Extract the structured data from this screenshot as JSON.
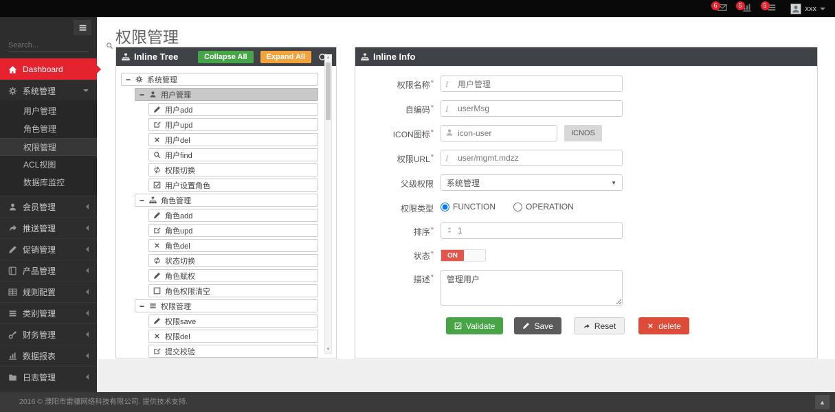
{
  "topbar": {
    "notifications": [
      {
        "key": "messages",
        "icon": "envelope-icon",
        "count": "6"
      },
      {
        "key": "reports",
        "icon": "chart-icon",
        "count": "5"
      },
      {
        "key": "tasks",
        "icon": "tasks-icon",
        "count": "5"
      }
    ],
    "user": {
      "name": "xxx",
      "avatar_icon": "avatar"
    }
  },
  "sidebar": {
    "search_placeholder": "Search...",
    "items": [
      {
        "key": "dashboard",
        "icon": "home-icon",
        "label": "Dashboard",
        "active": true
      },
      {
        "key": "system",
        "icon": "cogs-icon",
        "label": "系统管理",
        "expanded": true,
        "children": [
          {
            "key": "user",
            "label": "用户管理"
          },
          {
            "key": "role",
            "label": "角色管理"
          },
          {
            "key": "permission",
            "label": "权限管理",
            "selected": true
          },
          {
            "key": "acl",
            "label": "ACL视图"
          },
          {
            "key": "dbmonitor",
            "label": "数据库监控"
          }
        ]
      },
      {
        "key": "member",
        "icon": "user-icon",
        "label": "会员管理"
      },
      {
        "key": "push",
        "icon": "share-icon",
        "label": "推送管理"
      },
      {
        "key": "promotion",
        "icon": "pencil-icon",
        "label": "促销管理"
      },
      {
        "key": "product",
        "icon": "book-icon",
        "label": "产品管理"
      },
      {
        "key": "rules",
        "icon": "table-icon",
        "label": "规则配置"
      },
      {
        "key": "category",
        "icon": "bars-icon",
        "label": "类别管理"
      },
      {
        "key": "finance",
        "icon": "key-icon",
        "label": "财务管理"
      },
      {
        "key": "reports",
        "icon": "chart-icon",
        "label": "数据报表"
      },
      {
        "key": "logs",
        "icon": "folder-icon",
        "label": "日志管理"
      }
    ]
  },
  "page": {
    "title": "权限管理"
  },
  "tree_panel": {
    "title": "Inline Tree",
    "title_icon": "sitemap-icon",
    "collapse_all_label": "Collapse All",
    "expand_all_label": "Expand All",
    "refresh_icon": "refresh-icon",
    "nodes": [
      {
        "level": 0,
        "icon": "cogs-icon",
        "label": "系统管理",
        "toggle": "−"
      },
      {
        "level": 1,
        "icon": "user-icon",
        "label": "用户管理",
        "toggle": "−",
        "selected": true
      },
      {
        "level": 2,
        "icon": "pencil-icon",
        "label": "用户add"
      },
      {
        "level": 2,
        "icon": "edit-icon",
        "label": "用户upd"
      },
      {
        "level": 2,
        "icon": "x-icon",
        "label": "用户del"
      },
      {
        "level": 2,
        "icon": "search-icon",
        "label": "用户find"
      },
      {
        "level": 2,
        "icon": "retweet-icon",
        "label": "权限切换"
      },
      {
        "level": 2,
        "icon": "check-square-icon",
        "label": "用户设置角色"
      },
      {
        "level": 1,
        "icon": "sitemap-icon",
        "label": "角色管理",
        "toggle": "−"
      },
      {
        "level": 2,
        "icon": "pencil-icon",
        "label": "角色add"
      },
      {
        "level": 2,
        "icon": "edit-icon",
        "label": "角色upd"
      },
      {
        "level": 2,
        "icon": "x-icon",
        "label": "角色del"
      },
      {
        "level": 2,
        "icon": "retweet-icon",
        "label": "状态切换"
      },
      {
        "level": 2,
        "icon": "pencil-icon",
        "label": "角色赋权"
      },
      {
        "level": 2,
        "icon": "square-icon",
        "label": "角色权限清空"
      },
      {
        "level": 1,
        "icon": "bars-icon",
        "label": "权限管理",
        "toggle": "−"
      },
      {
        "level": 2,
        "icon": "pencil-icon",
        "label": "权限save"
      },
      {
        "level": 2,
        "icon": "x-icon",
        "label": "权限del"
      },
      {
        "level": 2,
        "icon": "edit-icon",
        "label": "提交校验"
      }
    ]
  },
  "info_panel": {
    "title": "Inline Info",
    "title_icon": "sitemap-icon",
    "fields": {
      "name": {
        "label": "权限名称",
        "required": "*",
        "value": "用户管理"
      },
      "code": {
        "label": "自编码",
        "required": "*",
        "value": "userMsg"
      },
      "icon": {
        "label": "ICON图标",
        "required": "*",
        "value": "icon-user",
        "button_label": "ICNOS"
      },
      "url": {
        "label": "权限URL",
        "required": "*",
        "value": "user/mgmt.mdzz"
      },
      "parent": {
        "label": "父级权限",
        "value": "系统管理"
      },
      "type": {
        "label": "权限类型",
        "options": [
          "FUNCTION",
          "OPERATION"
        ],
        "selected": "FUNCTION"
      },
      "sort": {
        "label": "排序",
        "required": "*",
        "value": "1"
      },
      "status": {
        "label": "状态",
        "required": "*",
        "value": "ON"
      },
      "desc": {
        "label": "描述",
        "required": "*",
        "value": "管理用户"
      }
    },
    "buttons": {
      "validate": "Validate",
      "save": "Save",
      "reset": "Reset",
      "delete": "delete"
    }
  },
  "footer": {
    "copyright": "2016 © 濮阳市雷骧网络科技有限公司. 提供技术支持."
  },
  "colors": {
    "accent_red": "#e5232e",
    "header_dark": "#3f4347",
    "green": "#46a546",
    "orange": "#f2a33c",
    "save_gray": "#5b5b5b",
    "delete_red": "#dd4b39",
    "toggle_on_red": "#e4564c"
  }
}
